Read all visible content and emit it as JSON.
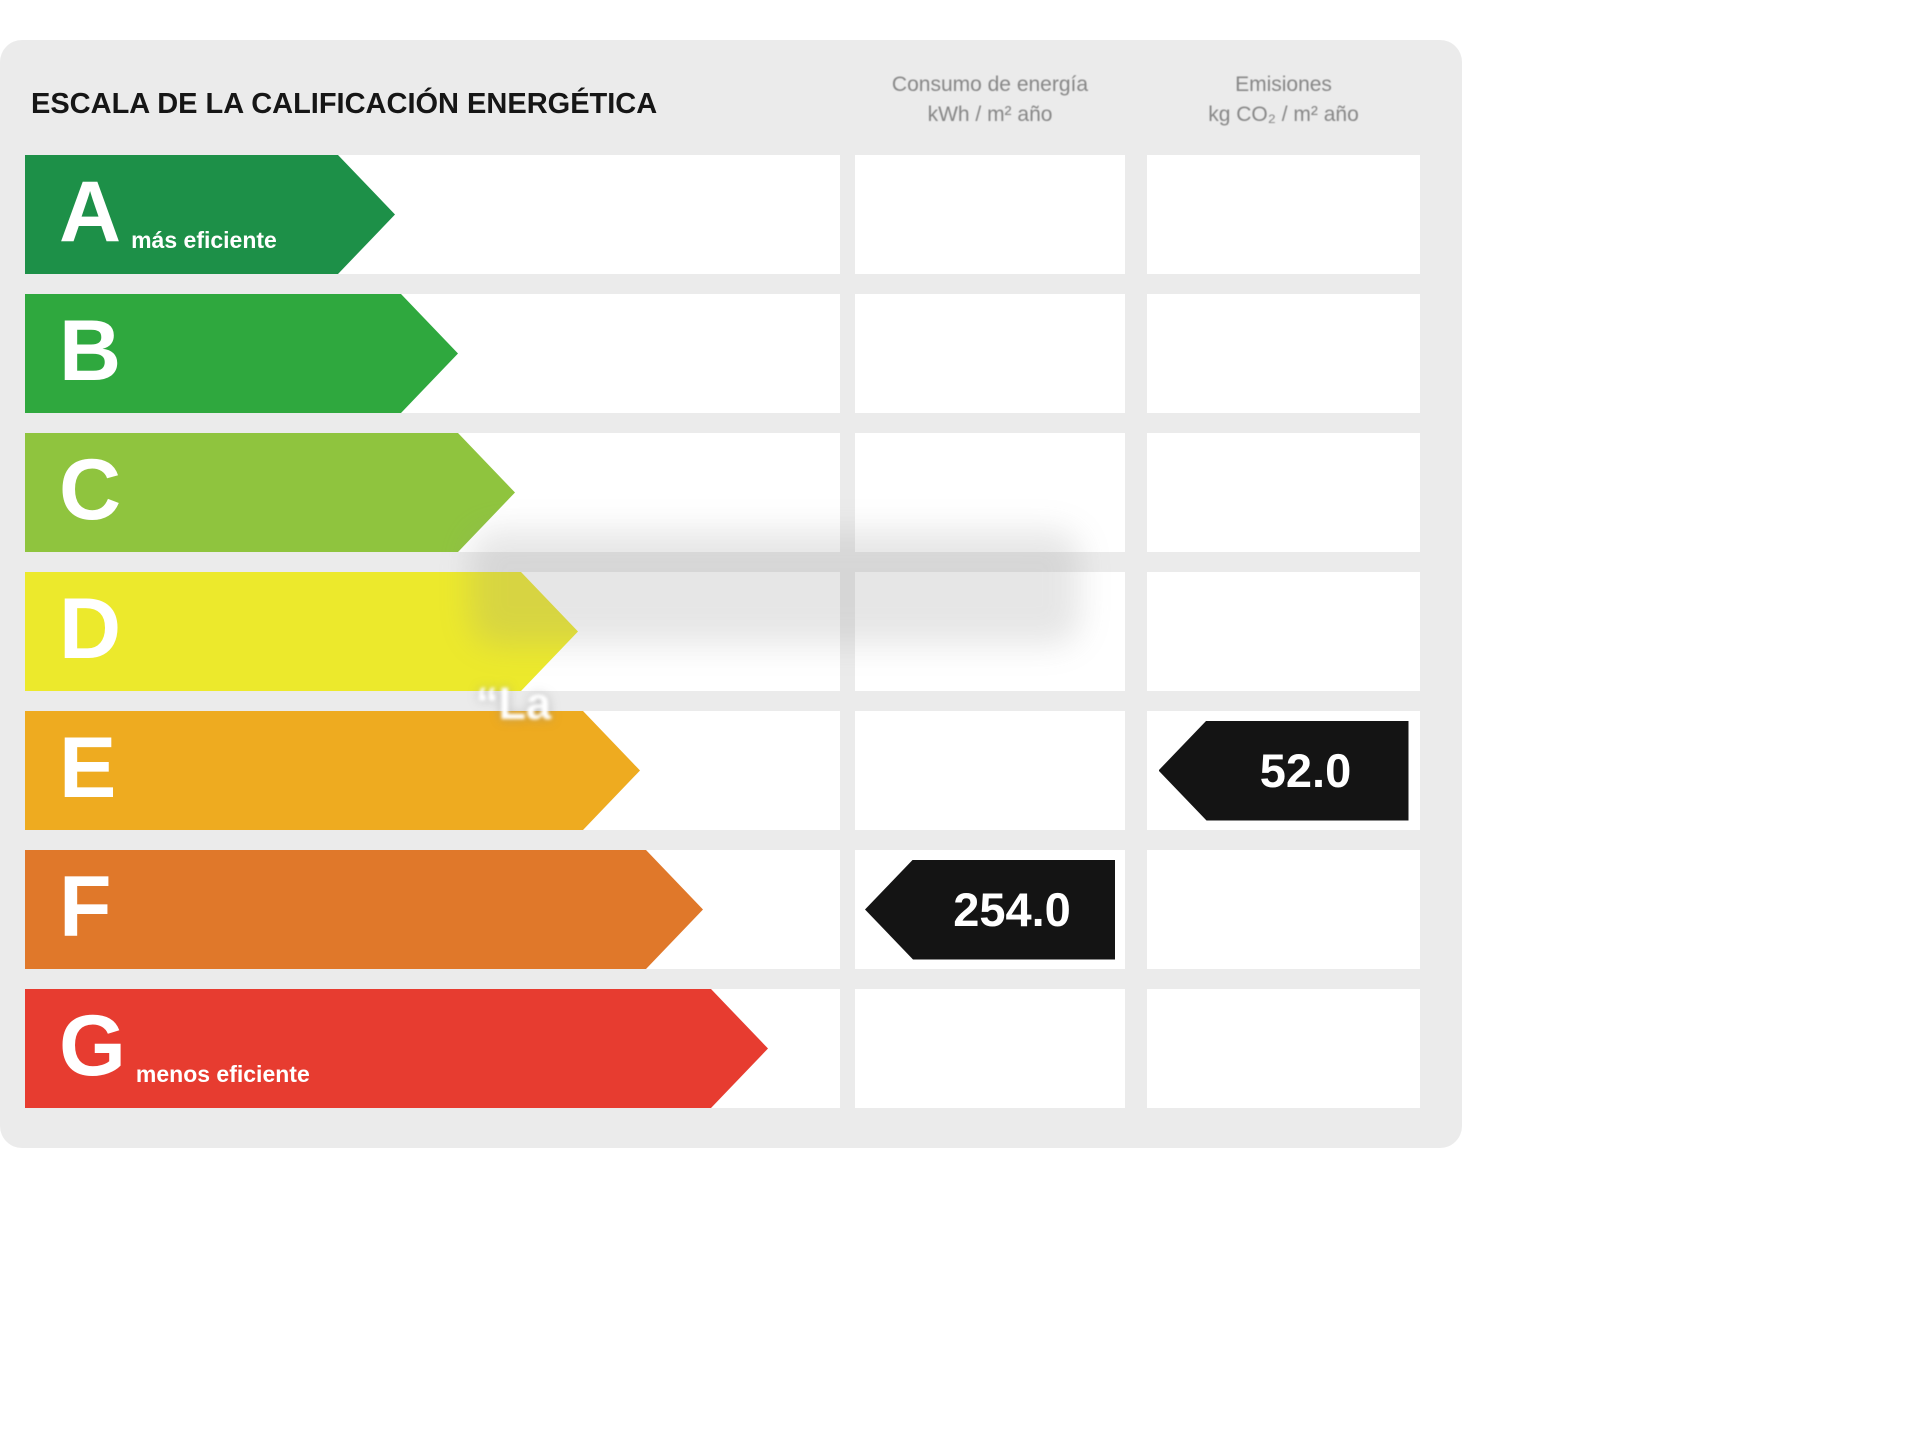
{
  "header": {
    "title": "ESCALA DE LA CALIFICACIÓN ENERGÉTICA",
    "consumo_header": {
      "line1": "Consumo de energía",
      "line2": "kWh / m² año"
    },
    "emisiones_header": {
      "line1": "Emisiones",
      "line2": "kg CO₂ / m² año"
    }
  },
  "watermark": {
    "text": "“La"
  },
  "chart_data": {
    "type": "bar",
    "title": "ESCALA DE LA CALIFICACIÓN ENERGÉTICA",
    "columns": [
      "Consumo de energía (kWh / m² año)",
      "Emisiones (kg CO₂ / m² año)"
    ],
    "ratings": [
      {
        "letter": "A",
        "label": "más eficiente",
        "color": "#1d9048",
        "consumo": null,
        "emisiones": null
      },
      {
        "letter": "B",
        "color": "#2fa83e",
        "consumo": null,
        "emisiones": null
      },
      {
        "letter": "C",
        "color": "#8fc43e",
        "consumo": null,
        "emisiones": null
      },
      {
        "letter": "D",
        "color": "#ece92c",
        "consumo": null,
        "emisiones": null
      },
      {
        "letter": "E",
        "color": "#eeab20",
        "consumo": null,
        "emisiones": 52.0
      },
      {
        "letter": "F",
        "color": "#e0782a",
        "consumo": 254.0,
        "emisiones": null
      },
      {
        "letter": "G",
        "label": "menos eficiente",
        "color": "#e73c30",
        "consumo": null,
        "emisiones": null
      }
    ],
    "values": {
      "consumo_value": "254.0",
      "consumo_rating": "F",
      "emisiones_value": "52.0",
      "emisiones_rating": "E"
    }
  }
}
